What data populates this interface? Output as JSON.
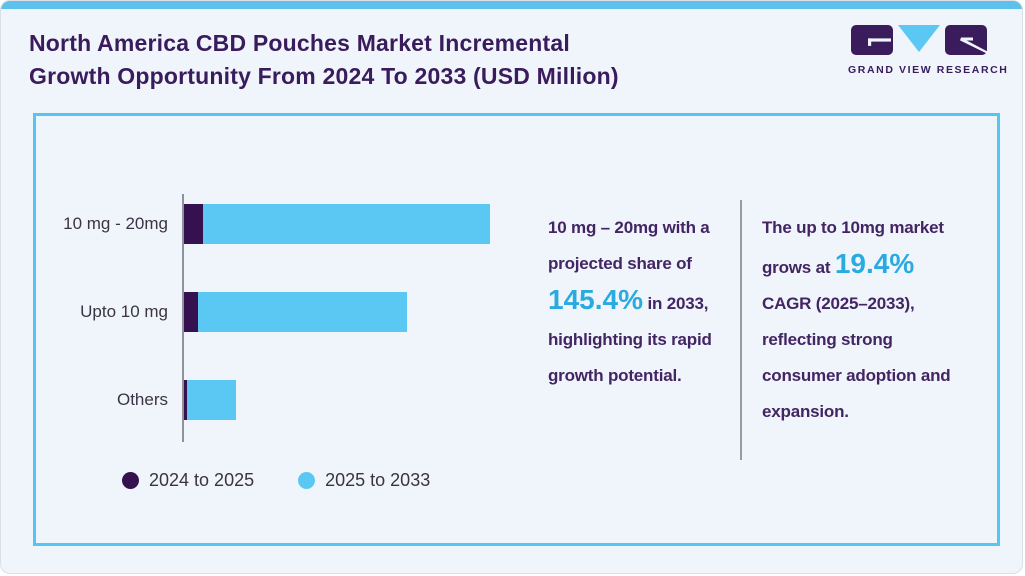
{
  "header": {
    "title_line1": "North America CBD Pouches Market Incremental",
    "title_line2": "Growth Opportunity From 2024 To 2033 (USD Million)",
    "logo_text": "GRAND VIEW RESEARCH"
  },
  "colors": {
    "title_purple": "#3a1b5c",
    "accent_bar_top": "#5ec1ec",
    "panel_border": "#55c6f3",
    "bar_dark_purple": "#351150",
    "bar_light_blue": "#5bc8f4",
    "highlight_blue": "#29abe2",
    "annotation_purple": "#432563",
    "axis_gray": "#8f9298",
    "background": "#eff5fb"
  },
  "chart_data": {
    "type": "bar",
    "orientation": "horizontal",
    "stacked": true,
    "title": "North America CBD Pouches Market Incremental Growth Opportunity From 2024 To 2033 (USD Million)",
    "categories": [
      "10 mg - 20mg",
      "Upto 10 mg",
      "Others"
    ],
    "series": [
      {
        "name": "2024 to 2025",
        "color": "#351150",
        "values": [
          19,
          14,
          3
        ]
      },
      {
        "name": "2025 to 2033",
        "color": "#5bc8f4",
        "values": [
          287,
          209,
          49
        ]
      }
    ],
    "values_unit": "relative bar length in px (no numeric axis labels shown in figure)",
    "xlabel": "",
    "ylabel": "",
    "grid": false,
    "legend_position": "bottom"
  },
  "annotations": {
    "left": {
      "pre": "10 mg – 20mg with a projected share of ",
      "highlight": "145.4%",
      "post": " in 2033, highlighting its rapid growth potential."
    },
    "right": {
      "pre": "The up to 10mg market grows at ",
      "highlight": "19.4%",
      "post": " CAGR (2025–2033), reflecting strong consumer adoption and expansion."
    }
  }
}
